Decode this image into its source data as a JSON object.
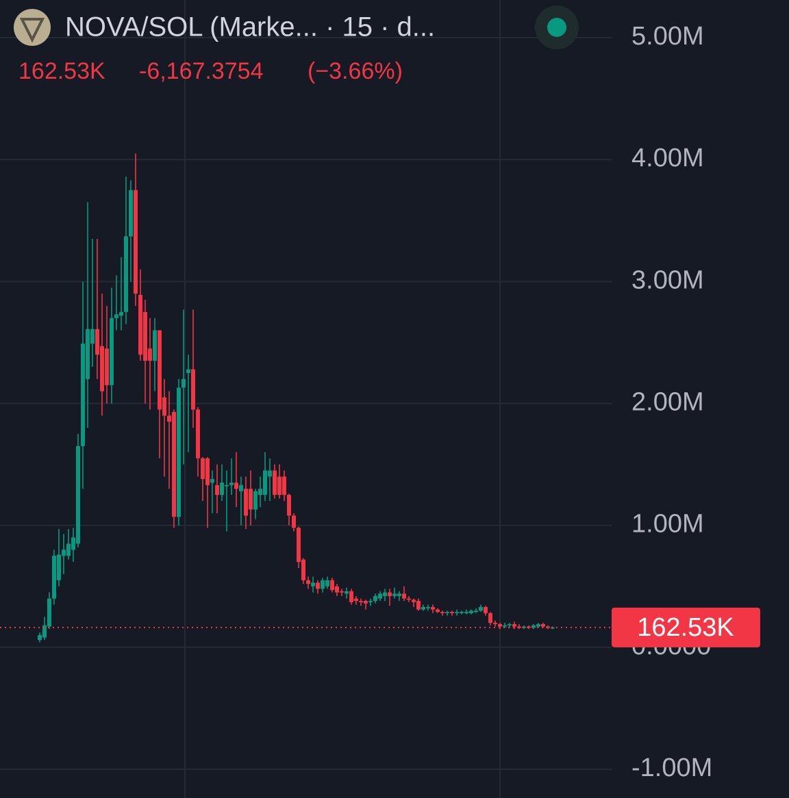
{
  "chart_data": {
    "type": "candlestick",
    "title": "NOVA/SOL (Marke... · 15 · d...",
    "header_price": "162.53K",
    "header_change": {
      "value": -6167.3754,
      "label": "-6,167.3754"
    },
    "header_change_pct": {
      "value": -3.66,
      "label": "(−3.66%)"
    },
    "last_price": {
      "value": 162530,
      "label": "162.53K"
    },
    "up_color": "#089981",
    "down_color": "#f23645",
    "grid": true,
    "ylim": [
      -1236000,
      5309000
    ],
    "yticks": [
      {
        "value": 5000000,
        "label": "5.00M"
      },
      {
        "value": 4000000,
        "label": "4.00M"
      },
      {
        "value": 3000000,
        "label": "3.00M"
      },
      {
        "value": 2000000,
        "label": "2.00M"
      },
      {
        "value": 1000000,
        "label": "1.00M"
      },
      {
        "value": 0,
        "label": "0.0000"
      },
      {
        "value": -1000000,
        "label": "-1.00M"
      }
    ],
    "candles": [
      [
        60000,
        120000,
        40000,
        100000
      ],
      [
        80000,
        250000,
        60000,
        180000
      ],
      [
        170000,
        450000,
        150000,
        400000
      ],
      [
        400000,
        800000,
        350000,
        750000
      ],
      [
        550000,
        970000,
        500000,
        760000
      ],
      [
        750000,
        930000,
        600000,
        800000
      ],
      [
        750000,
        970000,
        720000,
        850000
      ],
      [
        800000,
        980000,
        700000,
        900000
      ],
      [
        850000,
        1750000,
        820000,
        1650000
      ],
      [
        1650000,
        3000000,
        1300000,
        2490000
      ],
      [
        2200000,
        3650000,
        1800000,
        2610000
      ],
      [
        2490000,
        3350000,
        2300000,
        2610000
      ],
      [
        2610000,
        3350000,
        2200000,
        2400000
      ],
      [
        2470000,
        2900000,
        1900000,
        2100000
      ],
      [
        2450000,
        2800000,
        2000000,
        2150000
      ],
      [
        2150000,
        2950000,
        2000000,
        2700000
      ],
      [
        2700000,
        3050000,
        2600000,
        2730000
      ],
      [
        2720000,
        3200000,
        2600000,
        2750000
      ],
      [
        2750000,
        3860000,
        2650000,
        3370000
      ],
      [
        3370000,
        3830000,
        3000000,
        3750000
      ],
      [
        3750000,
        4050000,
        2800000,
        2900000
      ],
      [
        2890000,
        3100000,
        2350000,
        2400000
      ],
      [
        2750000,
        2850000,
        2000000,
        2350000
      ],
      [
        2450000,
        2700000,
        1950000,
        2350000
      ],
      [
        2350000,
        2700000,
        2100000,
        2600000
      ],
      [
        2600000,
        2600000,
        1550000,
        1950000
      ],
      [
        2050000,
        2200000,
        1400000,
        1900000
      ],
      [
        1900000,
        2100000,
        1300000,
        1850000
      ],
      [
        1930000,
        1950000,
        980000,
        1070000
      ],
      [
        1070000,
        2200000,
        1000000,
        2130000
      ],
      [
        2130000,
        2770000,
        1500000,
        2200000
      ],
      [
        2250000,
        2400000,
        1600000,
        2280000
      ],
      [
        2280000,
        2770000,
        1800000,
        1950000
      ],
      [
        1950000,
        1970000,
        1400000,
        1550000
      ],
      [
        1550000,
        1560000,
        1200000,
        1380000
      ],
      [
        1550000,
        1560000,
        980000,
        1330000
      ],
      [
        1350000,
        1450000,
        1100000,
        1380000
      ],
      [
        1330000,
        1500000,
        1100000,
        1250000
      ],
      [
        1250000,
        1500000,
        1200000,
        1350000
      ],
      [
        1320000,
        1450000,
        950000,
        1330000
      ],
      [
        1330000,
        1550000,
        1250000,
        1350000
      ],
      [
        1350000,
        1600000,
        1150000,
        1300000
      ],
      [
        1280000,
        1400000,
        1000000,
        1330000
      ],
      [
        1300000,
        1400000,
        970000,
        1080000
      ],
      [
        1300000,
        1450000,
        1000000,
        1130000
      ],
      [
        1130000,
        1300000,
        1050000,
        1280000
      ],
      [
        1250000,
        1400000,
        1150000,
        1300000
      ],
      [
        1250000,
        1600000,
        1200000,
        1450000
      ],
      [
        1400000,
        1550000,
        1200000,
        1450000
      ],
      [
        1450000,
        1500000,
        1220000,
        1250000
      ],
      [
        1400000,
        1500000,
        1220000,
        1250000
      ],
      [
        1400000,
        1450000,
        1200000,
        1250000
      ],
      [
        1250000,
        1260000,
        1000000,
        1080000
      ],
      [
        1080000,
        1100000,
        950000,
        980000
      ],
      [
        980000,
        990000,
        650000,
        700000
      ],
      [
        720000,
        730000,
        520000,
        550000
      ],
      [
        550000,
        580000,
        480000,
        520000
      ],
      [
        500000,
        580000,
        450000,
        530000
      ],
      [
        530000,
        550000,
        440000,
        480000
      ],
      [
        480000,
        570000,
        450000,
        550000
      ],
      [
        500000,
        580000,
        480000,
        550000
      ],
      [
        550000,
        570000,
        450000,
        470000
      ],
      [
        500000,
        520000,
        420000,
        450000
      ],
      [
        460000,
        480000,
        420000,
        450000
      ],
      [
        440000,
        490000,
        400000,
        460000
      ],
      [
        460000,
        480000,
        350000,
        370000
      ],
      [
        400000,
        420000,
        350000,
        380000
      ],
      [
        380000,
        400000,
        340000,
        370000
      ],
      [
        380000,
        390000,
        310000,
        360000
      ],
      [
        370000,
        400000,
        340000,
        380000
      ],
      [
        380000,
        440000,
        360000,
        420000
      ],
      [
        400000,
        460000,
        380000,
        440000
      ],
      [
        420000,
        480000,
        380000,
        450000
      ],
      [
        450000,
        480000,
        340000,
        420000
      ],
      [
        420000,
        490000,
        400000,
        440000
      ],
      [
        420000,
        460000,
        380000,
        440000
      ],
      [
        440000,
        500000,
        380000,
        400000
      ],
      [
        400000,
        420000,
        370000,
        390000
      ],
      [
        390000,
        400000,
        330000,
        370000
      ],
      [
        380000,
        400000,
        300000,
        310000
      ],
      [
        310000,
        350000,
        300000,
        330000
      ],
      [
        320000,
        350000,
        300000,
        330000
      ],
      [
        330000,
        350000,
        280000,
        310000
      ],
      [
        310000,
        320000,
        280000,
        290000
      ],
      [
        290000,
        300000,
        260000,
        280000
      ],
      [
        280000,
        300000,
        260000,
        290000
      ],
      [
        290000,
        300000,
        260000,
        280000
      ],
      [
        280000,
        310000,
        260000,
        290000
      ],
      [
        280000,
        300000,
        270000,
        290000
      ],
      [
        280000,
        310000,
        270000,
        290000
      ],
      [
        280000,
        310000,
        270000,
        300000
      ],
      [
        290000,
        320000,
        280000,
        300000
      ],
      [
        300000,
        350000,
        290000,
        330000
      ],
      [
        330000,
        340000,
        260000,
        280000
      ],
      [
        280000,
        290000,
        180000,
        200000
      ],
      [
        200000,
        220000,
        170000,
        190000
      ],
      [
        190000,
        200000,
        150000,
        170000
      ],
      [
        170000,
        200000,
        160000,
        180000
      ],
      [
        180000,
        200000,
        160000,
        190000
      ],
      [
        190000,
        210000,
        150000,
        170000
      ],
      [
        170000,
        190000,
        150000,
        160000
      ],
      [
        160000,
        180000,
        150000,
        170000
      ],
      [
        170000,
        180000,
        150000,
        160000
      ],
      [
        160000,
        190000,
        150000,
        180000
      ],
      [
        170000,
        200000,
        160000,
        190000
      ],
      [
        190000,
        200000,
        160000,
        170000
      ],
      [
        170000,
        180000,
        150000,
        160000
      ],
      [
        160000,
        170000,
        150000,
        162530
      ]
    ]
  }
}
